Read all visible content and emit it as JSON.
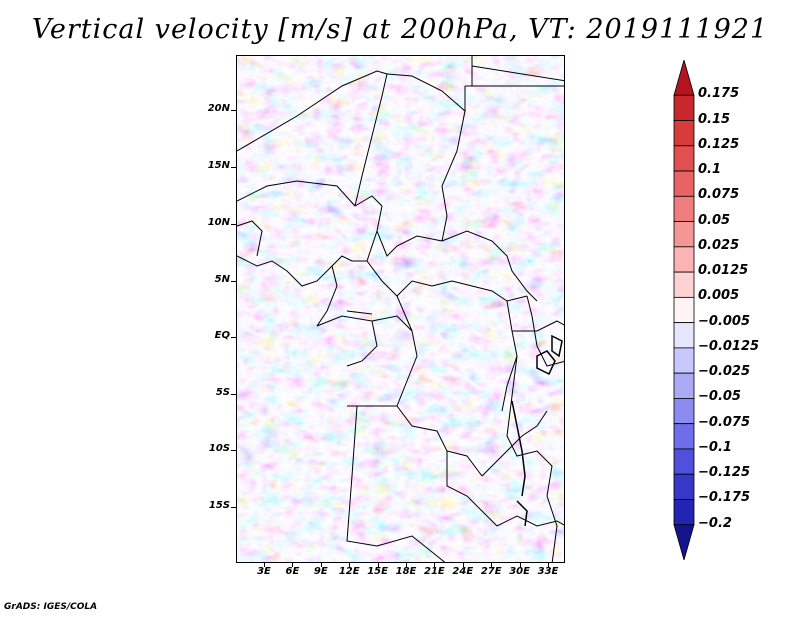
{
  "title": "Vertical velocity [m/s] at 200hPa, VT: 2019111921",
  "credit": "GrADS: IGES/COLA",
  "lat_labels": [
    "20N",
    "15N",
    "10N",
    "5N",
    "EQ",
    "5S",
    "10S",
    "15S"
  ],
  "lon_labels": [
    "3E",
    "6E",
    "9E",
    "12E",
    "15E",
    "18E",
    "21E",
    "24E",
    "27E",
    "30E",
    "33E"
  ],
  "colorbar": {
    "levels": [
      "0.175",
      "0.15",
      "0.125",
      "0.1",
      "0.075",
      "0.05",
      "0.025",
      "0.0125",
      "0.005",
      "−0.005",
      "−0.0125",
      "−0.025",
      "−0.05",
      "−0.075",
      "−0.1",
      "−0.125",
      "−0.175",
      "−0.2"
    ],
    "colors": [
      "#b4141e",
      "#c8282d",
      "#d63c3c",
      "#e05050",
      "#e86464",
      "#ef7d7d",
      "#f59696",
      "#fab4b4",
      "#fdd2d2",
      "#fff3f3",
      "#e6e6ff",
      "#c8c8ff",
      "#aaaaf5",
      "#8c8cf0",
      "#6e6eeb",
      "#5050dc",
      "#3737c8",
      "#2323b4",
      "#14148c"
    ]
  }
}
